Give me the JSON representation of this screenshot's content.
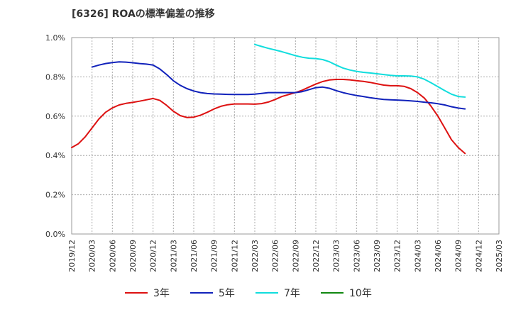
{
  "chart_data": {
    "type": "line",
    "title": "[6326]  ROAの標準偏差の推移",
    "xlabel": "",
    "ylabel": "",
    "ylim": [
      0,
      1.0
    ],
    "y_ticks": [
      "0.0%",
      "0.2%",
      "0.4%",
      "0.6%",
      "0.8%",
      "1.0%"
    ],
    "y_tick_values": [
      0,
      0.2,
      0.4,
      0.6,
      0.8,
      1.0
    ],
    "x_ticks": [
      "2019/12",
      "2020/03",
      "2020/06",
      "2020/09",
      "2020/12",
      "2021/03",
      "2021/06",
      "2021/09",
      "2021/12",
      "2022/03",
      "2022/06",
      "2022/09",
      "2022/12",
      "2023/03",
      "2023/06",
      "2023/09",
      "2023/12",
      "2024/03",
      "2024/06",
      "2024/09",
      "2024/12",
      "2025/03"
    ],
    "grid": true,
    "legend_position": "bottom",
    "series": [
      {
        "name": "3年",
        "color": "#dd1111",
        "points": [
          [
            0,
            0.44
          ],
          [
            1,
            0.46
          ],
          [
            2,
            0.495
          ],
          [
            3,
            0.54
          ],
          [
            4,
            0.585
          ],
          [
            5,
            0.62
          ],
          [
            6,
            0.642
          ],
          [
            7,
            0.657
          ],
          [
            8,
            0.665
          ],
          [
            9,
            0.67
          ],
          [
            10,
            0.676
          ],
          [
            11,
            0.683
          ],
          [
            12,
            0.69
          ],
          [
            13,
            0.68
          ],
          [
            14,
            0.655
          ],
          [
            15,
            0.625
          ],
          [
            16,
            0.603
          ],
          [
            17,
            0.593
          ],
          [
            18,
            0.595
          ],
          [
            19,
            0.605
          ],
          [
            20,
            0.62
          ],
          [
            21,
            0.637
          ],
          [
            22,
            0.65
          ],
          [
            23,
            0.658
          ],
          [
            24,
            0.662
          ],
          [
            25,
            0.662
          ],
          [
            26,
            0.662
          ],
          [
            27,
            0.661
          ],
          [
            28,
            0.664
          ],
          [
            29,
            0.672
          ],
          [
            30,
            0.685
          ],
          [
            31,
            0.7
          ],
          [
            32,
            0.71
          ],
          [
            33,
            0.72
          ],
          [
            34,
            0.732
          ],
          [
            35,
            0.748
          ],
          [
            36,
            0.763
          ],
          [
            37,
            0.776
          ],
          [
            38,
            0.784
          ],
          [
            39,
            0.787
          ],
          [
            40,
            0.787
          ],
          [
            41,
            0.785
          ],
          [
            42,
            0.781
          ],
          [
            43,
            0.777
          ],
          [
            44,
            0.772
          ],
          [
            45,
            0.765
          ],
          [
            46,
            0.758
          ],
          [
            47,
            0.755
          ],
          [
            48,
            0.755
          ],
          [
            49,
            0.752
          ],
          [
            50,
            0.74
          ],
          [
            51,
            0.72
          ],
          [
            52,
            0.692
          ],
          [
            53,
            0.65
          ],
          [
            54,
            0.6
          ],
          [
            55,
            0.54
          ],
          [
            56,
            0.48
          ],
          [
            57,
            0.44
          ],
          [
            58,
            0.41
          ]
        ]
      },
      {
        "name": "5年",
        "color": "#1122bb",
        "points": [
          [
            3,
            0.85
          ],
          [
            4,
            0.86
          ],
          [
            5,
            0.868
          ],
          [
            6,
            0.873
          ],
          [
            7,
            0.876
          ],
          [
            8,
            0.875
          ],
          [
            9,
            0.872
          ],
          [
            10,
            0.868
          ],
          [
            11,
            0.865
          ],
          [
            12,
            0.86
          ],
          [
            13,
            0.84
          ],
          [
            14,
            0.812
          ],
          [
            15,
            0.78
          ],
          [
            16,
            0.757
          ],
          [
            17,
            0.74
          ],
          [
            18,
            0.728
          ],
          [
            19,
            0.72
          ],
          [
            20,
            0.715
          ],
          [
            21,
            0.713
          ],
          [
            22,
            0.712
          ],
          [
            23,
            0.711
          ],
          [
            24,
            0.71
          ],
          [
            25,
            0.71
          ],
          [
            26,
            0.71
          ],
          [
            27,
            0.712
          ],
          [
            28,
            0.716
          ],
          [
            29,
            0.72
          ],
          [
            30,
            0.72
          ],
          [
            31,
            0.72
          ],
          [
            32,
            0.72
          ],
          [
            33,
            0.72
          ],
          [
            34,
            0.725
          ],
          [
            35,
            0.735
          ],
          [
            36,
            0.745
          ],
          [
            37,
            0.748
          ],
          [
            38,
            0.742
          ],
          [
            39,
            0.73
          ],
          [
            40,
            0.72
          ],
          [
            41,
            0.712
          ],
          [
            42,
            0.705
          ],
          [
            43,
            0.7
          ],
          [
            44,
            0.694
          ],
          [
            45,
            0.689
          ],
          [
            46,
            0.685
          ],
          [
            47,
            0.683
          ],
          [
            48,
            0.682
          ],
          [
            49,
            0.68
          ],
          [
            50,
            0.678
          ],
          [
            51,
            0.675
          ],
          [
            52,
            0.671
          ],
          [
            53,
            0.668
          ],
          [
            54,
            0.663
          ],
          [
            55,
            0.657
          ],
          [
            56,
            0.648
          ],
          [
            57,
            0.641
          ],
          [
            58,
            0.637
          ]
        ]
      },
      {
        "name": "7年",
        "color": "#11dddd",
        "points": [
          [
            27,
            0.965
          ],
          [
            28,
            0.955
          ],
          [
            29,
            0.945
          ],
          [
            30,
            0.937
          ],
          [
            31,
            0.928
          ],
          [
            32,
            0.918
          ],
          [
            33,
            0.908
          ],
          [
            34,
            0.9
          ],
          [
            35,
            0.895
          ],
          [
            36,
            0.893
          ],
          [
            37,
            0.888
          ],
          [
            38,
            0.877
          ],
          [
            39,
            0.86
          ],
          [
            40,
            0.845
          ],
          [
            41,
            0.835
          ],
          [
            42,
            0.828
          ],
          [
            43,
            0.823
          ],
          [
            44,
            0.82
          ],
          [
            45,
            0.816
          ],
          [
            46,
            0.812
          ],
          [
            47,
            0.808
          ],
          [
            48,
            0.805
          ],
          [
            49,
            0.805
          ],
          [
            50,
            0.804
          ],
          [
            51,
            0.8
          ],
          [
            52,
            0.788
          ],
          [
            53,
            0.77
          ],
          [
            54,
            0.75
          ],
          [
            55,
            0.73
          ],
          [
            56,
            0.712
          ],
          [
            57,
            0.7
          ],
          [
            58,
            0.697
          ]
        ]
      },
      {
        "name": "10年",
        "color": "#118811",
        "points": []
      }
    ]
  }
}
